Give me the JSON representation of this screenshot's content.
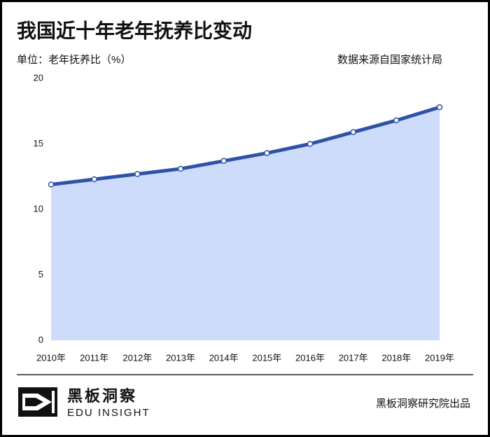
{
  "chart_data": {
    "type": "area",
    "title": "我国近十年老年抚养比变动",
    "subtitle": "单位：老年抚养比（%）",
    "source": "数据来源自国家统计局",
    "categories": [
      "2010年",
      "2011年",
      "2012年",
      "2013年",
      "2014年",
      "2015年",
      "2016年",
      "2017年",
      "2018年",
      "2019年"
    ],
    "values": [
      11.9,
      12.3,
      12.7,
      13.1,
      13.7,
      14.3,
      15.0,
      15.9,
      16.8,
      17.8
    ],
    "color": "#2f52a8",
    "fill": "#cddcfb",
    "ylim": [
      0,
      20
    ],
    "yticks": [
      0,
      5,
      10,
      15,
      20
    ],
    "grid": false
  },
  "footer": {
    "brand": "黑板洞察",
    "brand_en": "EDU INSIGHT",
    "credit": "黑板洞察研究院出品"
  }
}
